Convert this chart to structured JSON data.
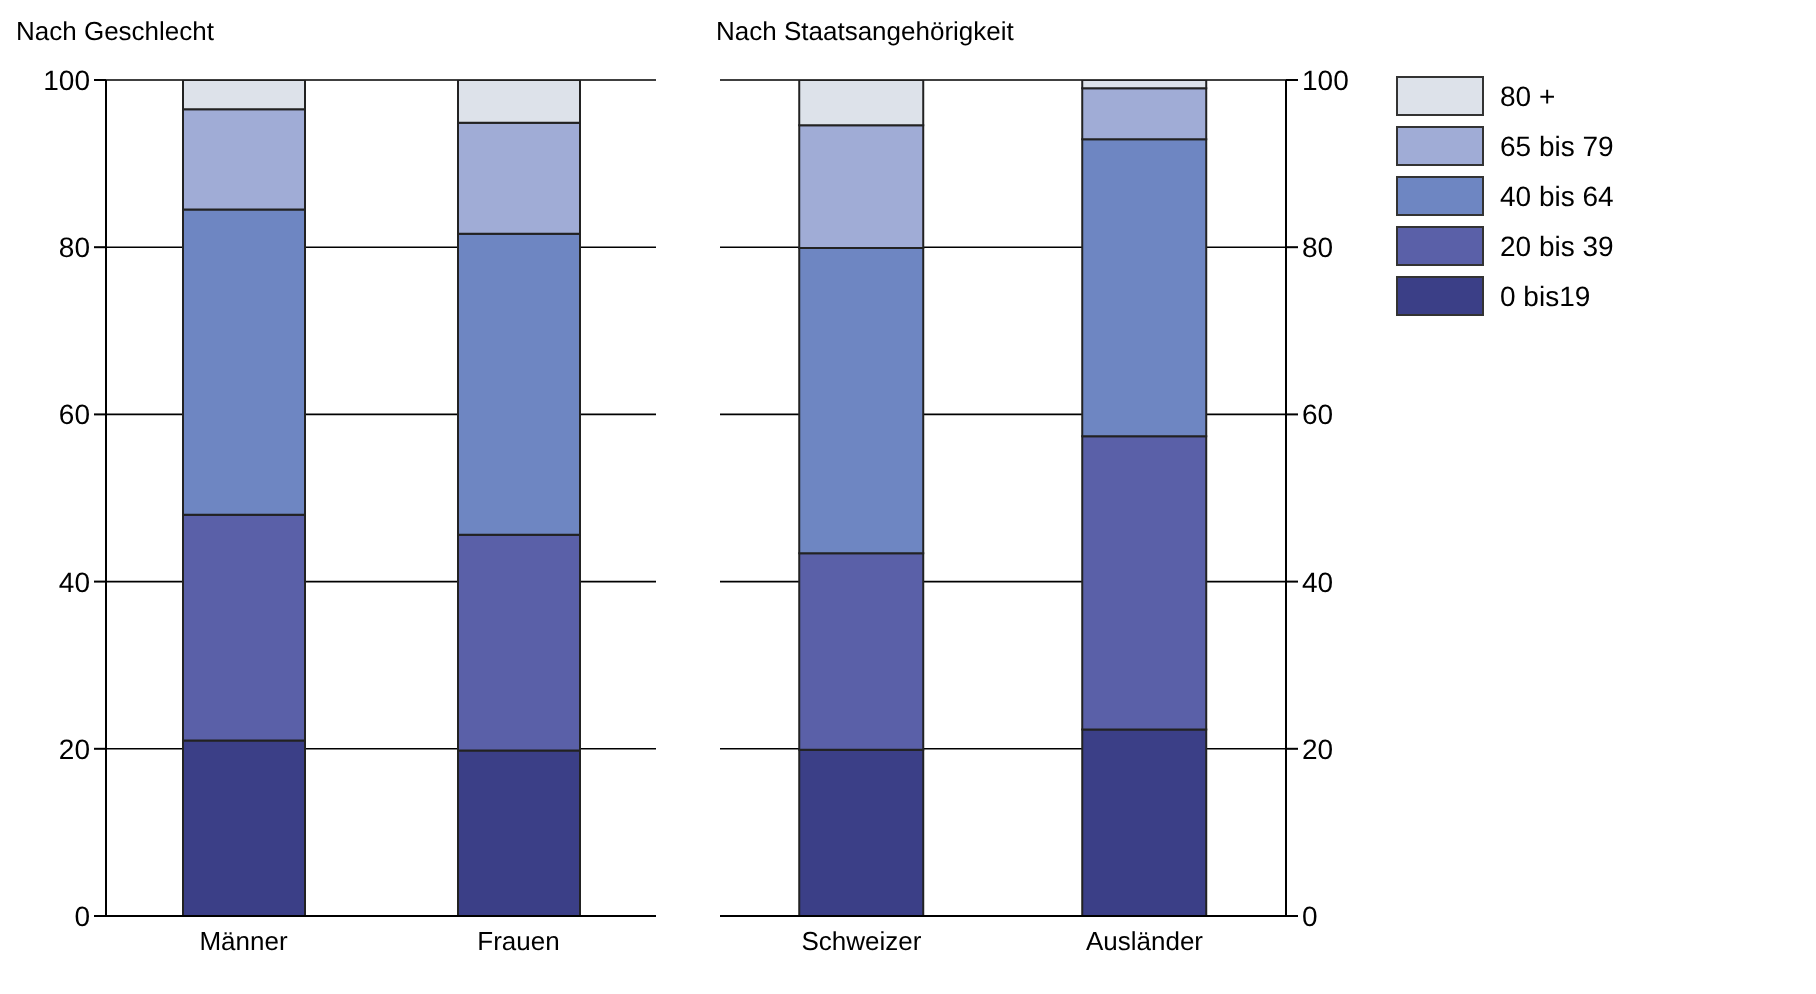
{
  "chart_data": [
    {
      "type": "bar",
      "title": "Nach Geschlecht",
      "categories": [
        "Männer",
        "Frauen"
      ],
      "stacked": true,
      "ylim": [
        0,
        100
      ],
      "yticks": [
        0,
        20,
        40,
        60,
        80,
        100
      ],
      "grid": "y",
      "legend": false,
      "series": [
        {
          "color": "#3b3f87",
          "values": [
            21,
            19.8
          ]
        },
        {
          "color": "#5a60a8",
          "values": [
            27,
            25.8
          ]
        },
        {
          "color": "#6e86c2",
          "values": [
            36.5,
            36
          ]
        },
        {
          "color": "#a0acd6",
          "values": [
            12,
            13.3
          ]
        },
        {
          "color": "#dde2ea",
          "values": [
            3.5,
            5.1
          ]
        }
      ]
    },
    {
      "type": "bar",
      "title": "Nach Staatsangehörigkeit",
      "categories": [
        "Schweizer",
        "Ausländer"
      ],
      "stacked": true,
      "y2lim": [
        0,
        100
      ],
      "y2ticks": [
        0,
        20,
        40,
        60,
        80,
        100
      ],
      "grid": "y",
      "legend": "right",
      "series": [
        {
          "name": "0 bis19",
          "color": "#3b3f87",
          "axis": "y2",
          "values": [
            19.9,
            22.3
          ]
        },
        {
          "name": "20 bis 39",
          "color": "#5a60a8",
          "axis": "y2",
          "values": [
            23.5,
            35.1
          ]
        },
        {
          "name": "40 bis 64",
          "color": "#6e86c2",
          "axis": "y2",
          "values": [
            36.5,
            35.5
          ]
        },
        {
          "name": "65 bis 79",
          "color": "#a0acd6",
          "axis": "y2",
          "values": [
            14.7,
            6.1
          ]
        },
        {
          "name": "80 +",
          "color": "#dde2ea",
          "axis": "y2",
          "values": [
            5.4,
            1.0
          ]
        }
      ]
    }
  ]
}
